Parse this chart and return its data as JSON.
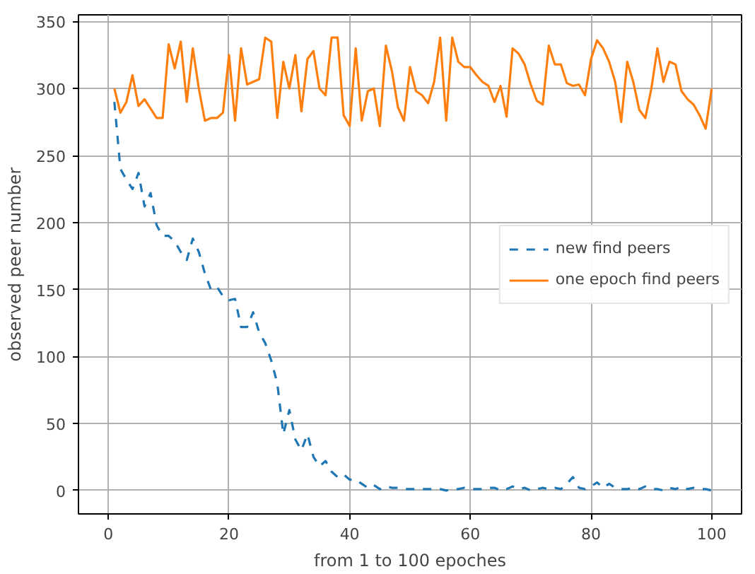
{
  "chart_data": {
    "type": "line",
    "xlabel": "from 1 to 100 epoches",
    "ylabel": "observed peer number",
    "x": [
      1,
      2,
      3,
      4,
      5,
      6,
      7,
      8,
      9,
      10,
      11,
      12,
      13,
      14,
      15,
      16,
      17,
      18,
      19,
      20,
      21,
      22,
      23,
      24,
      25,
      26,
      27,
      28,
      29,
      30,
      31,
      32,
      33,
      34,
      35,
      36,
      37,
      38,
      39,
      40,
      41,
      42,
      43,
      44,
      45,
      46,
      47,
      48,
      49,
      50,
      51,
      52,
      53,
      54,
      55,
      56,
      57,
      58,
      59,
      60,
      61,
      62,
      63,
      64,
      65,
      66,
      67,
      68,
      69,
      70,
      71,
      72,
      73,
      74,
      75,
      76,
      77,
      78,
      79,
      80,
      81,
      82,
      83,
      84,
      85,
      86,
      87,
      88,
      89,
      90,
      91,
      92,
      93,
      94,
      95,
      96,
      97,
      98,
      99,
      100
    ],
    "series": [
      {
        "name": "new find peers",
        "color": "#1f77b4",
        "line_style": "dashed",
        "values": [
          290,
          240,
          232,
          225,
          237,
          212,
          222,
          198,
          190,
          190,
          186,
          178,
          172,
          188,
          178,
          162,
          150,
          152,
          145,
          142,
          143,
          122,
          122,
          133,
          118,
          110,
          97,
          80,
          42,
          60,
          38,
          30,
          42,
          25,
          18,
          22,
          14,
          10,
          12,
          8,
          8,
          5,
          2,
          4,
          1,
          3,
          2,
          2,
          1,
          1,
          1,
          1,
          1,
          1,
          1,
          0,
          1,
          1,
          2,
          1,
          1,
          1,
          2,
          2,
          0,
          1,
          3,
          1,
          2,
          0,
          1,
          2,
          1,
          2,
          1,
          5,
          10,
          2,
          1,
          3,
          6,
          2,
          5,
          2,
          1,
          1,
          2,
          1,
          3,
          1,
          1,
          0,
          2,
          1,
          3,
          1,
          2,
          1,
          1,
          0
        ]
      },
      {
        "name": "one epoch find peers",
        "color": "#ff7f0e",
        "line_style": "solid",
        "values": [
          300,
          282,
          290,
          310,
          287,
          292,
          285,
          278,
          278,
          333,
          315,
          335,
          290,
          330,
          300,
          276,
          278,
          278,
          282,
          325,
          276,
          330,
          303,
          305,
          307,
          338,
          335,
          278,
          320,
          300,
          325,
          283,
          322,
          328,
          300,
          295,
          338,
          338,
          280,
          272,
          330,
          276,
          298,
          300,
          272,
          332,
          313,
          286,
          276,
          316,
          298,
          295,
          289,
          305,
          338,
          276,
          338,
          320,
          316,
          316,
          310,
          305,
          302,
          290,
          302,
          279,
          330,
          326,
          318,
          303,
          291,
          288,
          332,
          318,
          318,
          304,
          302,
          303,
          295,
          322,
          336,
          330,
          320,
          305,
          275,
          320,
          305,
          284,
          278,
          300,
          330,
          305,
          320,
          318,
          298,
          292,
          288,
          280,
          270,
          300
        ]
      }
    ],
    "xlim": [
      -4.95,
      104.95
    ],
    "ylim": [
      -17.5,
      355
    ],
    "xticks": [
      0,
      20,
      40,
      60,
      80,
      100
    ],
    "yticks": [
      0,
      50,
      100,
      150,
      200,
      250,
      300,
      350
    ],
    "grid": true,
    "legend": "right"
  }
}
